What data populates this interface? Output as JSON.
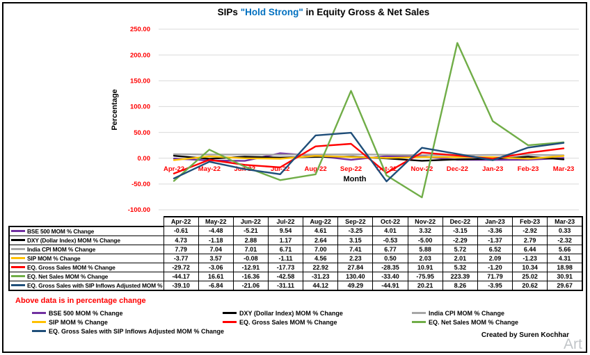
{
  "window": {
    "created_by": "Created by Suren Kochhar",
    "watermark": "Art"
  },
  "title": {
    "prefix": "SIPs ",
    "highlight": "\"Hold Strong\"",
    "suffix": " in Equity Gross & Net Sales",
    "highlight_color": "#0070C0"
  },
  "chart_data": {
    "type": "line",
    "title": "SIPs \"Hold Strong\" in Equity Gross & Net Sales",
    "xlabel": "Month",
    "ylabel": "Percentage",
    "ylim": [
      -100,
      250
    ],
    "ytick_step": 50,
    "grid": true,
    "legend_position": "bottom",
    "tick_label_color": "#FF0000",
    "gridline_color": "#D9D9D9",
    "categories": [
      "Apr-22",
      "May-22",
      "Jun-22",
      "Jul-22",
      "Aug-22",
      "Sep-22",
      "Oct-22",
      "Nov-22",
      "Dec-22",
      "Jan-23",
      "Feb-23",
      "Mar-23"
    ],
    "series": [
      {
        "name": "BSE 500 MOM % Change",
        "color": "#7030A0",
        "values": [
          -0.61,
          -4.48,
          -5.21,
          9.54,
          4.61,
          -3.25,
          4.01,
          3.32,
          -3.15,
          -3.36,
          -2.92,
          0.33
        ]
      },
      {
        "name": "DXY (Dollar Index) MOM % Change",
        "color": "#000000",
        "values": [
          4.73,
          -1.18,
          2.88,
          1.17,
          2.64,
          3.15,
          -0.53,
          -5.0,
          -2.29,
          -1.37,
          2.79,
          -2.32
        ]
      },
      {
        "name": "India CPI MOM % Change",
        "color": "#A6A6A6",
        "values": [
          7.79,
          7.04,
          7.01,
          6.71,
          7.0,
          7.41,
          6.77,
          5.88,
          5.72,
          6.52,
          6.44,
          5.66
        ]
      },
      {
        "name": "SIP MOM % Change",
        "color": "#FFC000",
        "values": [
          -3.77,
          3.57,
          -0.08,
          -1.11,
          4.56,
          2.23,
          0.5,
          2.03,
          2.01,
          2.09,
          -1.23,
          4.31
        ]
      },
      {
        "name": "EQ. Gross Sales MOM % Change",
        "color": "#FF0000",
        "values": [
          -29.72,
          -3.06,
          -12.91,
          -17.73,
          22.92,
          27.84,
          -28.35,
          10.91,
          5.32,
          -1.2,
          10.34,
          18.98
        ]
      },
      {
        "name": "EQ. Net Sales MOM % Change",
        "color": "#70AD47",
        "values": [
          -44.17,
          16.61,
          -16.36,
          -42.58,
          -31.23,
          130.4,
          -33.4,
          -75.95,
          223.39,
          71.79,
          25.02,
          30.91
        ]
      },
      {
        "name": "EQ. Gross Sales with SIP Inflows Adjusted MOM % Change",
        "color": "#1F4E79",
        "values": [
          -39.1,
          -6.84,
          -21.06,
          -31.11,
          44.12,
          49.29,
          -44.91,
          20.21,
          8.26,
          -3.95,
          20.62,
          29.67
        ]
      }
    ]
  },
  "footnote": "Above data is in percentage change",
  "legend": {
    "columns": [
      [
        0,
        3,
        6
      ],
      [
        1,
        4
      ],
      [
        2,
        5
      ]
    ]
  }
}
